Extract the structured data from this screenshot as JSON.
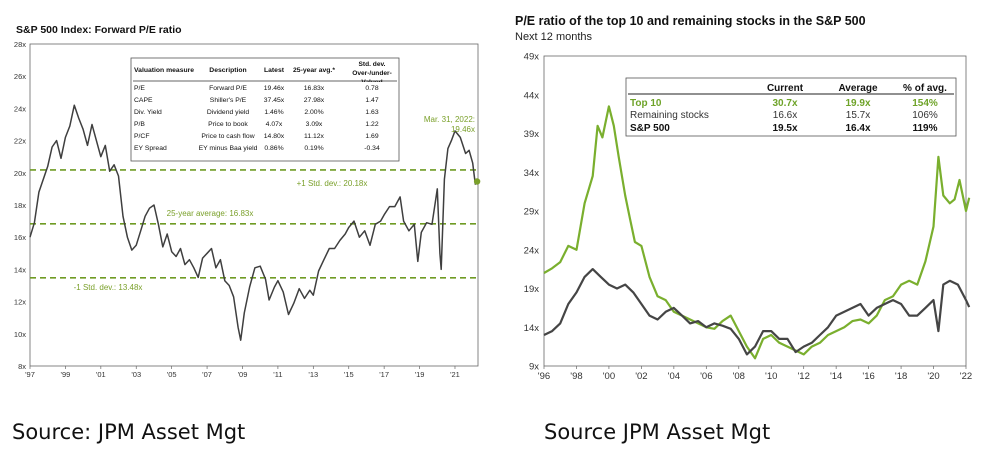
{
  "left_chart": {
    "title": "S&P 500 Index: Forward P/E ratio",
    "table": {
      "headers": [
        "Valuation measure",
        "Description",
        "Latest",
        "25-year avg.*",
        "Std. dev. Over-/under-Valued"
      ],
      "rows": [
        [
          "P/E",
          "Forward P/E",
          "19.46x",
          "16.83x",
          "0.78"
        ],
        [
          "CAPE",
          "Shiller's P/E",
          "37.45x",
          "27.98x",
          "1.47"
        ],
        [
          "Div. Yield",
          "Dividend yield",
          "1.46%",
          "2.00%",
          "1.63"
        ],
        [
          "P/B",
          "Price to book",
          "4.07x",
          "3.09x",
          "1.22"
        ],
        [
          "P/CF",
          "Price to cash flow",
          "14.80x",
          "11.12x",
          "1.69"
        ],
        [
          "EY Spread",
          "EY minus Baa yield",
          "0.86%",
          "0.19%",
          "-0.34"
        ]
      ]
    },
    "annotations": {
      "latest": "Mar. 31, 2022:",
      "latest_value": "19.46x",
      "plus_sd": "+1 Std. dev.: 20.18x",
      "avg": "25-year average: 16.83x",
      "minus_sd": "-1 Std. dev.: 13.48x"
    },
    "colors": {
      "line": "#3f3f3f",
      "ref": "#6f9b24",
      "annotation": "#7aa02a"
    }
  },
  "right_chart": {
    "title": "P/E ratio of the top 10 and remaining stocks in the S&P 500",
    "subtitle": "Next 12 months",
    "table": {
      "headers": [
        "",
        "Current",
        "Average",
        "% of avg."
      ],
      "rows": [
        [
          "Top 10",
          "30.7x",
          "19.9x",
          "154%"
        ],
        [
          "Remaining stocks",
          "16.6x",
          "15.7x",
          "106%"
        ],
        [
          "S&P 500",
          "19.5x",
          "16.4x",
          "119%"
        ]
      ]
    },
    "colors": {
      "top10": "#7aaf2e",
      "remaining": "#454545"
    }
  },
  "captions": {
    "left": "Source: JPM Asset Mgt",
    "right": "Source  JPM Asset Mgt"
  },
  "chart_data": [
    {
      "type": "line",
      "title": "S&P 500 Index: Forward P/E ratio",
      "x_tick_labels": [
        "'97",
        "'99",
        "'01",
        "'03",
        "'05",
        "'07",
        "'09",
        "'11",
        "'13",
        "'15",
        "'17",
        "'19",
        "'21"
      ],
      "x_range": [
        1997.0,
        2022.3
      ],
      "y_tick_labels": [
        "8x",
        "10x",
        "12x",
        "14x",
        "16x",
        "18x",
        "20x",
        "22x",
        "24x",
        "26x",
        "28x"
      ],
      "ylim": [
        8,
        28
      ],
      "grid": false,
      "reference_lines": [
        {
          "name": "+1 Std. dev.",
          "value": 20.18
        },
        {
          "name": "25-year average",
          "value": 16.83
        },
        {
          "name": "-1 Std. dev.",
          "value": 13.48
        }
      ],
      "series": [
        {
          "values": [
            [
              1997.0,
              16.0
            ],
            [
              1997.25,
              16.9
            ],
            [
              1997.5,
              18.8
            ],
            [
              1997.75,
              19.6
            ],
            [
              1998.0,
              20.4
            ],
            [
              1998.25,
              21.6
            ],
            [
              1998.5,
              22.0
            ],
            [
              1998.75,
              20.9
            ],
            [
              1999.0,
              22.2
            ],
            [
              1999.25,
              22.9
            ],
            [
              1999.5,
              24.2
            ],
            [
              1999.75,
              23.4
            ],
            [
              2000.0,
              22.7
            ],
            [
              2000.25,
              21.7
            ],
            [
              2000.5,
              23.0
            ],
            [
              2000.75,
              22.0
            ],
            [
              2001.0,
              21.0
            ],
            [
              2001.25,
              21.7
            ],
            [
              2001.5,
              20.1
            ],
            [
              2001.75,
              20.5
            ],
            [
              2002.0,
              19.8
            ],
            [
              2002.25,
              17.3
            ],
            [
              2002.5,
              16.0
            ],
            [
              2002.75,
              15.2
            ],
            [
              2003.0,
              15.5
            ],
            [
              2003.25,
              16.4
            ],
            [
              2003.5,
              17.3
            ],
            [
              2003.75,
              17.8
            ],
            [
              2004.0,
              18.0
            ],
            [
              2004.25,
              16.8
            ],
            [
              2004.5,
              15.4
            ],
            [
              2004.75,
              16.2
            ],
            [
              2005.0,
              15.1
            ],
            [
              2005.25,
              14.8
            ],
            [
              2005.5,
              15.3
            ],
            [
              2005.75,
              14.3
            ],
            [
              2006.0,
              14.6
            ],
            [
              2006.25,
              14.1
            ],
            [
              2006.5,
              13.5
            ],
            [
              2006.75,
              14.7
            ],
            [
              2007.0,
              15.0
            ],
            [
              2007.25,
              15.3
            ],
            [
              2007.5,
              14.1
            ],
            [
              2007.75,
              14.6
            ],
            [
              2008.0,
              13.3
            ],
            [
              2008.25,
              13.0
            ],
            [
              2008.5,
              12.3
            ],
            [
              2008.75,
              10.4
            ],
            [
              2008.9,
              9.6
            ],
            [
              2009.1,
              11.3
            ],
            [
              2009.4,
              12.9
            ],
            [
              2009.7,
              14.1
            ],
            [
              2010.0,
              14.2
            ],
            [
              2010.3,
              13.4
            ],
            [
              2010.5,
              12.1
            ],
            [
              2010.8,
              12.9
            ],
            [
              2011.0,
              13.3
            ],
            [
              2011.3,
              12.6
            ],
            [
              2011.6,
              11.2
            ],
            [
              2011.9,
              11.9
            ],
            [
              2012.2,
              12.8
            ],
            [
              2012.5,
              12.2
            ],
            [
              2012.8,
              12.7
            ],
            [
              2013.0,
              12.4
            ],
            [
              2013.3,
              13.9
            ],
            [
              2013.6,
              14.6
            ],
            [
              2013.9,
              15.3
            ],
            [
              2014.2,
              15.3
            ],
            [
              2014.5,
              15.8
            ],
            [
              2014.8,
              16.2
            ],
            [
              2015.0,
              16.6
            ],
            [
              2015.3,
              17.0
            ],
            [
              2015.6,
              16.0
            ],
            [
              2015.9,
              16.4
            ],
            [
              2016.2,
              15.5
            ],
            [
              2016.5,
              16.8
            ],
            [
              2016.8,
              17.0
            ],
            [
              2017.0,
              17.4
            ],
            [
              2017.3,
              17.9
            ],
            [
              2017.6,
              17.9
            ],
            [
              2017.9,
              18.5
            ],
            [
              2018.1,
              17.0
            ],
            [
              2018.4,
              16.4
            ],
            [
              2018.7,
              16.8
            ],
            [
              2018.9,
              14.5
            ],
            [
              2019.1,
              16.3
            ],
            [
              2019.4,
              16.9
            ],
            [
              2019.7,
              16.8
            ],
            [
              2020.0,
              19.0
            ],
            [
              2020.15,
              15.0
            ],
            [
              2020.22,
              14.0
            ],
            [
              2020.4,
              19.6
            ],
            [
              2020.6,
              21.5
            ],
            [
              2020.8,
              22.0
            ],
            [
              2021.0,
              22.6
            ],
            [
              2021.3,
              22.2
            ],
            [
              2021.6,
              21.2
            ],
            [
              2021.8,
              21.4
            ],
            [
              2022.0,
              20.6
            ],
            [
              2022.15,
              19.3
            ],
            [
              2022.25,
              19.46
            ]
          ]
        }
      ]
    },
    {
      "type": "line",
      "title": "P/E ratio of the top 10 and remaining stocks in the S&P 500",
      "x_tick_labels": [
        "'96",
        "'98",
        "'00",
        "'02",
        "'04",
        "'06",
        "'08",
        "'10",
        "'12",
        "'14",
        "'16",
        "'18",
        "'20",
        "'22"
      ],
      "x_range": [
        1996,
        2022
      ],
      "y_tick_labels": [
        "9x",
        "14x",
        "19x",
        "24x",
        "29x",
        "34x",
        "39x",
        "44x",
        "49x"
      ],
      "ylim": [
        9,
        49
      ],
      "grid": false,
      "series": [
        {
          "name": "Top 10",
          "values": [
            [
              1996.0,
              21.0
            ],
            [
              1996.5,
              21.6
            ],
            [
              1997.0,
              22.4
            ],
            [
              1997.5,
              24.5
            ],
            [
              1998.0,
              24.0
            ],
            [
              1998.5,
              30.0
            ],
            [
              1999.0,
              33.5
            ],
            [
              1999.3,
              40.0
            ],
            [
              1999.6,
              38.5
            ],
            [
              2000.0,
              42.5
            ],
            [
              2000.3,
              40.0
            ],
            [
              2000.6,
              36.0
            ],
            [
              2001.0,
              31.0
            ],
            [
              2001.3,
              28.0
            ],
            [
              2001.6,
              25.0
            ],
            [
              2002.0,
              24.5
            ],
            [
              2002.5,
              20.5
            ],
            [
              2003.0,
              18.0
            ],
            [
              2003.5,
              17.5
            ],
            [
              2004.0,
              16.0
            ],
            [
              2004.5,
              15.5
            ],
            [
              2005.0,
              15.0
            ],
            [
              2005.5,
              14.5
            ],
            [
              2006.0,
              14.0
            ],
            [
              2006.5,
              13.8
            ],
            [
              2007.0,
              14.8
            ],
            [
              2007.5,
              15.5
            ],
            [
              2008.0,
              13.5
            ],
            [
              2008.5,
              11.5
            ],
            [
              2009.0,
              10.0
            ],
            [
              2009.5,
              12.5
            ],
            [
              2010.0,
              13.0
            ],
            [
              2010.5,
              12.0
            ],
            [
              2011.0,
              11.5
            ],
            [
              2011.5,
              11.0
            ],
            [
              2012.0,
              10.5
            ],
            [
              2012.5,
              11.5
            ],
            [
              2013.0,
              12.0
            ],
            [
              2013.5,
              13.0
            ],
            [
              2014.0,
              13.5
            ],
            [
              2014.5,
              14.0
            ],
            [
              2015.0,
              14.8
            ],
            [
              2015.5,
              15.0
            ],
            [
              2016.0,
              14.5
            ],
            [
              2016.5,
              15.5
            ],
            [
              2017.0,
              17.5
            ],
            [
              2017.5,
              18.0
            ],
            [
              2018.0,
              19.5
            ],
            [
              2018.5,
              20.0
            ],
            [
              2019.0,
              19.5
            ],
            [
              2019.5,
              22.5
            ],
            [
              2020.0,
              27.0
            ],
            [
              2020.3,
              36.0
            ],
            [
              2020.6,
              31.0
            ],
            [
              2021.0,
              30.0
            ],
            [
              2021.3,
              30.5
            ],
            [
              2021.6,
              33.0
            ],
            [
              2022.0,
              29.0
            ],
            [
              2022.2,
              30.7
            ]
          ]
        },
        {
          "name": "Remaining stocks",
          "values": [
            [
              1996.0,
              13.0
            ],
            [
              1996.5,
              13.5
            ],
            [
              1997.0,
              14.5
            ],
            [
              1997.5,
              17.0
            ],
            [
              1998.0,
              18.5
            ],
            [
              1998.5,
              20.5
            ],
            [
              1999.0,
              21.5
            ],
            [
              1999.5,
              20.5
            ],
            [
              2000.0,
              19.5
            ],
            [
              2000.5,
              19.0
            ],
            [
              2001.0,
              19.5
            ],
            [
              2001.5,
              18.5
            ],
            [
              2002.0,
              17.0
            ],
            [
              2002.5,
              15.5
            ],
            [
              2003.0,
              15.0
            ],
            [
              2003.5,
              16.0
            ],
            [
              2004.0,
              16.5
            ],
            [
              2004.5,
              15.5
            ],
            [
              2005.0,
              14.5
            ],
            [
              2005.5,
              14.8
            ],
            [
              2006.0,
              14.0
            ],
            [
              2006.5,
              14.5
            ],
            [
              2007.0,
              14.2
            ],
            [
              2007.5,
              13.8
            ],
            [
              2008.0,
              12.5
            ],
            [
              2008.5,
              10.5
            ],
            [
              2009.0,
              11.5
            ],
            [
              2009.5,
              13.5
            ],
            [
              2010.0,
              13.5
            ],
            [
              2010.5,
              12.5
            ],
            [
              2011.0,
              12.5
            ],
            [
              2011.5,
              10.8
            ],
            [
              2012.0,
              11.5
            ],
            [
              2012.5,
              12.0
            ],
            [
              2013.0,
              13.0
            ],
            [
              2013.5,
              14.0
            ],
            [
              2014.0,
              15.5
            ],
            [
              2014.5,
              16.0
            ],
            [
              2015.0,
              16.5
            ],
            [
              2015.5,
              17.0
            ],
            [
              2016.0,
              15.5
            ],
            [
              2016.5,
              16.5
            ],
            [
              2017.0,
              17.0
            ],
            [
              2017.5,
              17.5
            ],
            [
              2018.0,
              17.0
            ],
            [
              2018.5,
              15.5
            ],
            [
              2019.0,
              15.5
            ],
            [
              2019.5,
              16.5
            ],
            [
              2020.0,
              17.5
            ],
            [
              2020.3,
              13.5
            ],
            [
              2020.6,
              19.5
            ],
            [
              2021.0,
              20.0
            ],
            [
              2021.5,
              19.5
            ],
            [
              2022.0,
              17.5
            ],
            [
              2022.2,
              16.6
            ]
          ]
        }
      ]
    }
  ]
}
